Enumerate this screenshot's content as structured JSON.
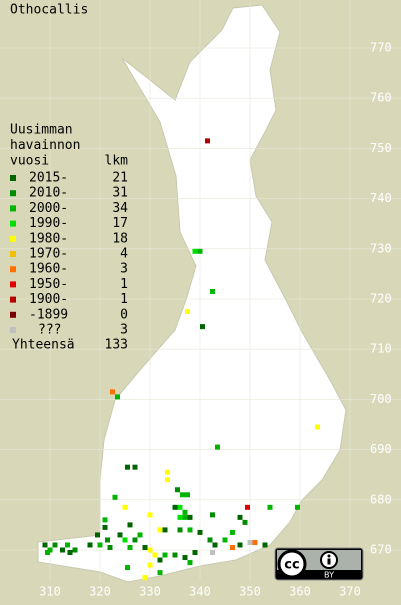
{
  "title": "Othocallis",
  "legend": {
    "title_lines": [
      "Uusimman",
      "havainnon",
      "vuosi"
    ],
    "count_header": "lkm",
    "items": [
      {
        "label": "2015-",
        "count": 21,
        "color": "#006400"
      },
      {
        "label": "2010-",
        "count": 31,
        "color": "#008c00"
      },
      {
        "label": "2000-",
        "count": 34,
        "color": "#00b400"
      },
      {
        "label": "1990-",
        "count": 17,
        "color": "#00e000"
      },
      {
        "label": "1980-",
        "count": 18,
        "color": "#ffff00"
      },
      {
        "label": "1970-",
        "count": 4,
        "color": "#f0c000"
      },
      {
        "label": "1960-",
        "count": 3,
        "color": "#ff7000"
      },
      {
        "label": "1950-",
        "count": 1,
        "color": "#e00000"
      },
      {
        "label": "1900-",
        "count": 1,
        "color": "#b00000"
      },
      {
        "label": "-1899",
        "count": 0,
        "color": "#780000"
      },
      {
        "label": "???",
        "count": 3,
        "color": "#c0c0c0"
      }
    ],
    "total_label": "Yhteensä",
    "total": 133
  },
  "y_ticks": [
    670,
    680,
    690,
    700,
    710,
    720,
    730,
    740,
    750,
    760,
    770
  ],
  "x_ticks": [
    310,
    320,
    330,
    340,
    350,
    360,
    370
  ],
  "license": {
    "logo": "cc",
    "badge": "BY"
  },
  "points": [
    {
      "x": 341.5,
      "y": 751.5,
      "period": "1900-"
    },
    {
      "x": 339,
      "y": 729.5,
      "period": "1990-"
    },
    {
      "x": 340,
      "y": 729.5,
      "period": "2000-"
    },
    {
      "x": 342.5,
      "y": 721.5,
      "period": "2000-"
    },
    {
      "x": 340.5,
      "y": 714.5,
      "period": "2015-"
    },
    {
      "x": 337.5,
      "y": 717.5,
      "period": "1980-"
    },
    {
      "x": 322.5,
      "y": 701.5,
      "period": "1960-"
    },
    {
      "x": 323.5,
      "y": 700.5,
      "period": "2000-"
    },
    {
      "x": 363.5,
      "y": 694.5,
      "period": "1980-"
    },
    {
      "x": 343.5,
      "y": 690.5,
      "period": "2000-"
    },
    {
      "x": 325.5,
      "y": 686.5,
      "period": "2015-"
    },
    {
      "x": 327,
      "y": 686.5,
      "period": "2015-"
    },
    {
      "x": 333.5,
      "y": 685.5,
      "period": "1980-"
    },
    {
      "x": 333.5,
      "y": 684,
      "period": "1980-"
    },
    {
      "x": 335.5,
      "y": 682,
      "period": "2010-"
    },
    {
      "x": 336.5,
      "y": 681,
      "period": "2000-"
    },
    {
      "x": 337.5,
      "y": 681,
      "period": "2000-"
    },
    {
      "x": 323,
      "y": 680.5,
      "period": "2000-"
    },
    {
      "x": 349.5,
      "y": 678.5,
      "period": "1950-"
    },
    {
      "x": 354,
      "y": 678.5,
      "period": "2000-"
    },
    {
      "x": 359.5,
      "y": 678.5,
      "period": "2000-"
    },
    {
      "x": 325,
      "y": 678.5,
      "period": "1980-"
    },
    {
      "x": 335,
      "y": 678.5,
      "period": "2015-"
    },
    {
      "x": 336,
      "y": 678.5,
      "period": "1990-"
    },
    {
      "x": 337,
      "y": 677.5,
      "period": "2000-"
    },
    {
      "x": 336,
      "y": 676.5,
      "period": "1990-"
    },
    {
      "x": 337,
      "y": 676.5,
      "period": "2000-"
    },
    {
      "x": 338,
      "y": 676.5,
      "period": "2015-"
    },
    {
      "x": 348,
      "y": 676.5,
      "period": "2015-"
    },
    {
      "x": 349,
      "y": 675.5,
      "period": "2010-"
    },
    {
      "x": 342.5,
      "y": 677,
      "period": "2010-"
    },
    {
      "x": 346.5,
      "y": 673.5,
      "period": "2000-"
    },
    {
      "x": 321,
      "y": 676,
      "period": "2000-"
    },
    {
      "x": 321,
      "y": 674.5,
      "period": "2015-"
    },
    {
      "x": 326,
      "y": 675,
      "period": "2015-"
    },
    {
      "x": 330,
      "y": 677,
      "period": "1980-"
    },
    {
      "x": 319.5,
      "y": 673,
      "period": "2015-"
    },
    {
      "x": 321.5,
      "y": 672,
      "period": "2010-"
    },
    {
      "x": 324,
      "y": 673,
      "period": "2015-"
    },
    {
      "x": 325,
      "y": 672,
      "period": "1990-"
    },
    {
      "x": 327,
      "y": 672,
      "period": "2010-"
    },
    {
      "x": 328,
      "y": 673,
      "period": "2000-"
    },
    {
      "x": 332,
      "y": 674,
      "period": "1980-"
    },
    {
      "x": 333,
      "y": 674,
      "period": "2015-"
    },
    {
      "x": 336,
      "y": 674,
      "period": "2010-"
    },
    {
      "x": 338,
      "y": 674,
      "period": "2000-"
    },
    {
      "x": 340,
      "y": 673.5,
      "period": "2015-"
    },
    {
      "x": 342,
      "y": 672,
      "period": "2010-"
    },
    {
      "x": 343,
      "y": 671,
      "period": "2015-"
    },
    {
      "x": 345,
      "y": 672,
      "period": "2000-"
    },
    {
      "x": 346.5,
      "y": 670.5,
      "period": "1960-"
    },
    {
      "x": 348,
      "y": 671,
      "period": "2015-"
    },
    {
      "x": 350,
      "y": 671.5,
      "period": "???"
    },
    {
      "x": 351,
      "y": 671.5,
      "period": "1960-"
    },
    {
      "x": 353,
      "y": 671,
      "period": "2015-"
    },
    {
      "x": 309,
      "y": 671,
      "period": "2015-"
    },
    {
      "x": 310,
      "y": 670,
      "period": "2000-"
    },
    {
      "x": 311,
      "y": 671,
      "period": "2010-"
    },
    {
      "x": 312.5,
      "y": 670,
      "period": "2015-"
    },
    {
      "x": 313.5,
      "y": 671,
      "period": "2000-"
    },
    {
      "x": 315,
      "y": 670,
      "period": "2010-"
    },
    {
      "x": 309.5,
      "y": 669.5,
      "period": "2000-"
    },
    {
      "x": 314,
      "y": 669.5,
      "period": "2015-"
    },
    {
      "x": 318,
      "y": 671,
      "period": "2015-"
    },
    {
      "x": 320,
      "y": 671,
      "period": "2000-"
    },
    {
      "x": 322,
      "y": 670.5,
      "period": "2010-"
    },
    {
      "x": 326,
      "y": 670.5,
      "period": "2000-"
    },
    {
      "x": 329,
      "y": 670.5,
      "period": "2015-"
    },
    {
      "x": 330,
      "y": 670,
      "period": "1980-"
    },
    {
      "x": 331,
      "y": 669,
      "period": "1980-"
    },
    {
      "x": 332,
      "y": 668,
      "period": "2015-"
    },
    {
      "x": 333,
      "y": 669,
      "period": "2000-"
    },
    {
      "x": 335,
      "y": 669,
      "period": "2010-"
    },
    {
      "x": 337,
      "y": 668.5,
      "period": "2015-"
    },
    {
      "x": 338,
      "y": 667.5,
      "period": "2000-"
    },
    {
      "x": 339,
      "y": 669.5,
      "period": "2015-"
    },
    {
      "x": 342.5,
      "y": 669.5,
      "period": "???"
    },
    {
      "x": 330,
      "y": 667,
      "period": "1980-"
    },
    {
      "x": 329,
      "y": 664.5,
      "period": "1980-"
    },
    {
      "x": 332,
      "y": 665.5,
      "period": "2000-"
    },
    {
      "x": 325.5,
      "y": 666.5,
      "period": "2000-"
    }
  ]
}
